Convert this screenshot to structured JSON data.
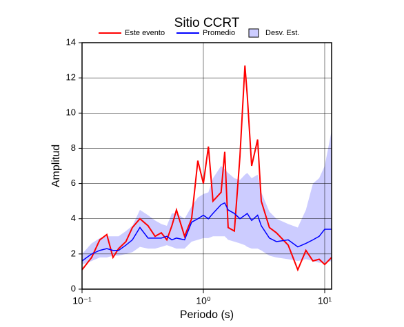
{
  "chart_data": {
    "type": "line",
    "title": "Sitio CCRT",
    "x_label": "Periodo (s)",
    "y_label": "Amplitud",
    "x_scale": "log",
    "grid": true,
    "legend": "top",
    "xlim": [
      0.1,
      11.4
    ],
    "ylim": [
      0,
      14
    ],
    "xticks": [
      {
        "value": 0.1,
        "label": "10⁻¹"
      },
      {
        "value": 1,
        "label": "10⁰"
      },
      {
        "value": 10,
        "label": "10¹"
      }
    ],
    "yticks": [
      0,
      2,
      4,
      6,
      8,
      10,
      12,
      14
    ],
    "x": [
      0.1,
      0.12,
      0.14,
      0.16,
      0.18,
      0.2,
      0.23,
      0.26,
      0.3,
      0.35,
      0.4,
      0.45,
      0.5,
      0.55,
      0.6,
      0.7,
      0.8,
      0.9,
      1.0,
      1.1,
      1.2,
      1.4,
      1.5,
      1.6,
      1.8,
      2.0,
      2.2,
      2.3,
      2.5,
      2.8,
      3.0,
      3.5,
      4,
      5,
      6,
      7,
      8,
      9,
      10,
      11.4
    ],
    "band": {
      "name": "Desv. Est.",
      "color": "#ccccff",
      "lower": [
        1.4,
        1.6,
        1.8,
        1.8,
        1.9,
        1.9,
        2.0,
        2.1,
        2.4,
        2.3,
        2.3,
        2.4,
        2.5,
        2.4,
        2.3,
        2.3,
        2.7,
        2.8,
        2.9,
        2.9,
        3.0,
        3.0,
        3.0,
        2.8,
        2.7,
        2.6,
        2.5,
        2.4,
        2.3,
        2.3,
        2.2,
        1.9,
        1.8,
        1.7,
        1.6,
        1.7,
        1.6,
        1.5,
        1.5,
        1.6
      ],
      "upper": [
        2.0,
        2.6,
        2.9,
        3.0,
        3.0,
        3.0,
        3.3,
        3.6,
        4.5,
        4.2,
        3.9,
        3.7,
        3.6,
        4.3,
        4.3,
        4.0,
        4.7,
        5.2,
        5.4,
        5.5,
        6.3,
        7.0,
        6.8,
        6.6,
        6.3,
        6.2,
        6.5,
        6.6,
        6.3,
        6.5,
        5.5,
        4.4,
        4.0,
        3.7,
        3.5,
        4.5,
        6.0,
        6.3,
        7.0,
        9.0
      ]
    },
    "series": [
      {
        "name": "Este evento",
        "color": "#ff0000",
        "values": [
          1.1,
          1.8,
          2.8,
          3.1,
          1.8,
          2.3,
          2.7,
          3.5,
          4.0,
          3.6,
          3.0,
          3.2,
          2.8,
          3.6,
          4.5,
          3.0,
          4.0,
          7.3,
          6.0,
          8.1,
          5.0,
          5.5,
          7.8,
          3.5,
          3.3,
          7.5,
          12.7,
          11,
          7.0,
          8.5,
          5.0,
          3.5,
          3.2,
          2.5,
          1.1,
          2.2,
          1.6,
          1.7,
          1.4,
          1.8
        ]
      },
      {
        "name": "Promedio",
        "color": "#0000ff",
        "values": [
          1.6,
          2.0,
          2.2,
          2.3,
          2.2,
          2.2,
          2.5,
          2.8,
          3.5,
          2.9,
          2.9,
          2.9,
          3.0,
          2.8,
          2.9,
          2.8,
          3.8,
          4.0,
          4.2,
          4.0,
          4.3,
          4.8,
          4.9,
          4.5,
          4.3,
          4.0,
          4.2,
          4.3,
          3.9,
          4.2,
          3.6,
          2.9,
          2.7,
          2.8,
          2.4,
          2.6,
          2.8,
          3.0,
          3.4,
          3.4
        ]
      }
    ]
  }
}
